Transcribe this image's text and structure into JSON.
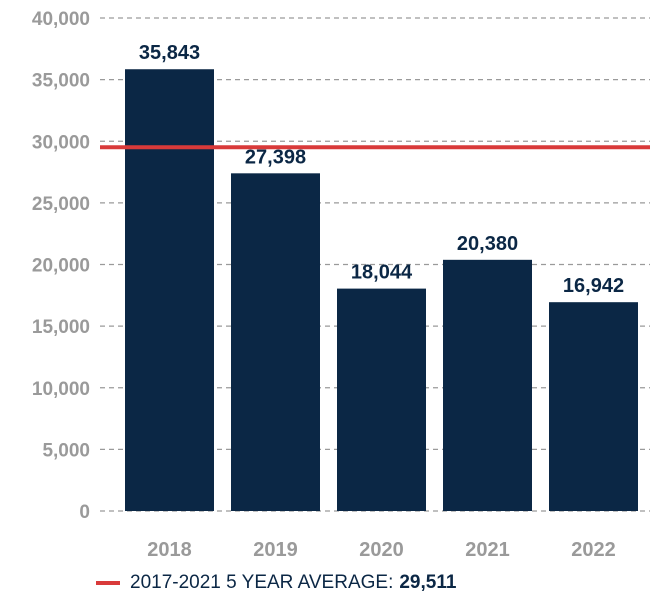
{
  "chart_data": {
    "type": "bar",
    "categories": [
      "2018",
      "2019",
      "2020",
      "2021",
      "2022"
    ],
    "values": [
      35843,
      27398,
      18044,
      20380,
      16942
    ],
    "value_labels": [
      "35,843",
      "27,398",
      "18,044",
      "20,380",
      "16,942"
    ],
    "ylim": [
      0,
      40000
    ],
    "y_ticks": [
      0,
      5000,
      10000,
      15000,
      20000,
      25000,
      30000,
      35000,
      40000
    ],
    "y_tick_labels": [
      "0",
      "5,000",
      "10,000",
      "15,000",
      "20,000",
      "25,000",
      "30,000",
      "35,000",
      "40,000"
    ],
    "grid": true,
    "reference_line": {
      "value": 29511,
      "label": "2017-2021 5 YEAR AVERAGE:",
      "value_label": "29,511"
    },
    "legend_position": "bottom"
  },
  "colors": {
    "bar": "#0b2745",
    "average_line": "#d93a3a",
    "axis_text": "#9a9a9a",
    "grid": "#9a9a9a",
    "value_text": "#0b2745"
  }
}
